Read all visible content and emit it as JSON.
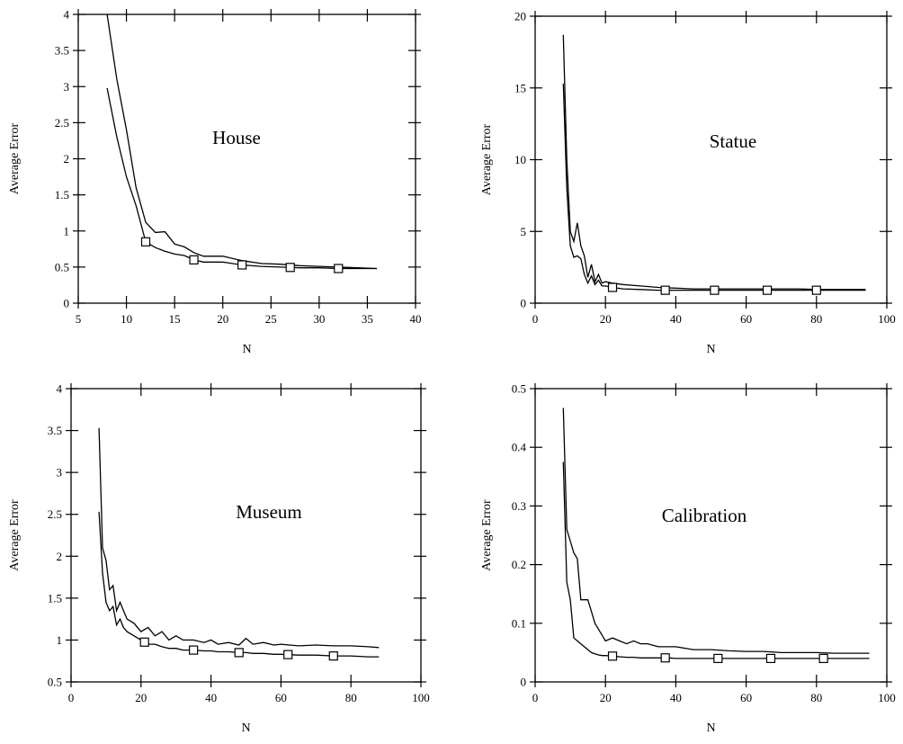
{
  "chart_data": [
    {
      "type": "line",
      "title": "House",
      "xlabel": "N",
      "ylabel": "Average Error",
      "xlim": [
        5,
        40
      ],
      "ylim": [
        0,
        4
      ],
      "xticks": [
        5,
        10,
        15,
        20,
        25,
        30,
        35,
        40
      ],
      "yticks": [
        0,
        0.5,
        1,
        1.5,
        2,
        2.5,
        3,
        3.5,
        4
      ],
      "ytick_labels": [
        "0",
        "0.5",
        "1",
        "1.5",
        "2",
        "2.5",
        "3",
        "3.5",
        "4"
      ],
      "grid": false,
      "series": [
        {
          "x": [
            8,
            9,
            10,
            11,
            12,
            13,
            14,
            15,
            16,
            17,
            18,
            20,
            22,
            24,
            26,
            28,
            30,
            32,
            34,
            36
          ],
          "y": [
            4.0,
            3.1,
            2.4,
            1.6,
            1.12,
            0.98,
            0.99,
            0.82,
            0.78,
            0.7,
            0.65,
            0.65,
            0.59,
            0.55,
            0.54,
            0.52,
            0.51,
            0.5,
            0.49,
            0.48
          ],
          "marker": "none"
        },
        {
          "x": [
            8,
            9,
            10,
            11,
            12,
            13,
            14,
            15,
            16,
            17,
            18,
            20,
            22,
            24,
            26,
            28,
            30,
            32,
            34,
            36
          ],
          "y": [
            2.98,
            2.3,
            1.75,
            1.35,
            0.85,
            0.77,
            0.72,
            0.68,
            0.66,
            0.6,
            0.57,
            0.57,
            0.53,
            0.51,
            0.5,
            0.49,
            0.49,
            0.48,
            0.48,
            0.48
          ],
          "marker": "square",
          "marker_x": [
            12,
            17,
            22,
            27,
            32
          ]
        }
      ]
    },
    {
      "type": "line",
      "title": "Statue",
      "xlabel": "N",
      "ylabel": "Average Error",
      "xlim": [
        0,
        100
      ],
      "ylim": [
        0,
        20
      ],
      "xticks": [
        0,
        20,
        40,
        60,
        80,
        100
      ],
      "yticks": [
        0,
        5,
        10,
        15,
        20
      ],
      "ytick_labels": [
        "0",
        "5",
        "10",
        "15",
        "20"
      ],
      "grid": false,
      "series": [
        {
          "x": [
            8,
            9,
            10,
            11,
            12,
            13,
            14,
            15,
            16,
            17,
            18,
            19,
            20,
            22,
            25,
            30,
            35,
            40,
            45,
            50,
            55,
            60,
            65,
            70,
            75,
            80,
            85,
            90,
            94
          ],
          "y": [
            18.7,
            10.0,
            5.0,
            4.3,
            5.6,
            4.0,
            3.3,
            1.8,
            2.7,
            1.5,
            2.0,
            1.4,
            1.5,
            1.4,
            1.3,
            1.2,
            1.1,
            1.05,
            1.0,
            1.0,
            1.0,
            1.0,
            1.0,
            1.0,
            1.0,
            0.95,
            0.95,
            0.95,
            0.95
          ],
          "marker": "none"
        },
        {
          "x": [
            8,
            9,
            10,
            11,
            12,
            13,
            14,
            15,
            16,
            17,
            18,
            19,
            20,
            22,
            25,
            30,
            35,
            40,
            45,
            50,
            55,
            60,
            65,
            70,
            75,
            80,
            85,
            90,
            94
          ],
          "y": [
            15.3,
            8.0,
            4.0,
            3.2,
            3.3,
            3.1,
            2.0,
            1.4,
            1.9,
            1.3,
            1.6,
            1.2,
            1.2,
            1.1,
            1.0,
            0.95,
            0.9,
            0.9,
            0.9,
            0.9,
            0.9,
            0.9,
            0.9,
            0.9,
            0.9,
            0.9,
            0.9,
            0.9,
            0.9
          ],
          "marker": "square",
          "marker_x": [
            22,
            37,
            51,
            66,
            80
          ]
        }
      ]
    },
    {
      "type": "line",
      "title": "Museum",
      "xlabel": "N",
      "ylabel": "Average Error",
      "xlim": [
        0,
        100
      ],
      "ylim": [
        0.5,
        4
      ],
      "xticks": [
        0,
        20,
        40,
        60,
        80,
        100
      ],
      "yticks": [
        0.5,
        1,
        1.5,
        2,
        2.5,
        3,
        3.5,
        4
      ],
      "ytick_labels": [
        "0.5",
        "1",
        "1.5",
        "2",
        "2.5",
        "3",
        "3.5",
        "4"
      ],
      "grid": false,
      "series": [
        {
          "x": [
            8,
            9,
            10,
            11,
            12,
            13,
            14,
            15,
            16,
            18,
            20,
            22,
            24,
            26,
            28,
            30,
            32,
            35,
            38,
            40,
            42,
            45,
            48,
            50,
            52,
            55,
            58,
            60,
            65,
            70,
            75,
            80,
            85,
            88
          ],
          "y": [
            3.53,
            2.1,
            1.95,
            1.6,
            1.65,
            1.35,
            1.45,
            1.35,
            1.25,
            1.2,
            1.1,
            1.15,
            1.05,
            1.1,
            1.0,
            1.05,
            1.0,
            1.0,
            0.97,
            1.0,
            0.95,
            0.97,
            0.94,
            1.02,
            0.95,
            0.97,
            0.94,
            0.95,
            0.93,
            0.94,
            0.93,
            0.93,
            0.92,
            0.91
          ],
          "marker": "none"
        },
        {
          "x": [
            8,
            9,
            10,
            11,
            12,
            13,
            14,
            15,
            16,
            18,
            20,
            22,
            24,
            26,
            28,
            30,
            32,
            35,
            38,
            40,
            42,
            45,
            48,
            50,
            52,
            55,
            58,
            60,
            65,
            70,
            75,
            80,
            85,
            88
          ],
          "y": [
            2.53,
            1.8,
            1.45,
            1.35,
            1.4,
            1.18,
            1.25,
            1.15,
            1.1,
            1.05,
            1.0,
            0.95,
            0.95,
            0.92,
            0.9,
            0.9,
            0.88,
            0.88,
            0.87,
            0.87,
            0.86,
            0.86,
            0.85,
            0.85,
            0.84,
            0.84,
            0.83,
            0.83,
            0.82,
            0.82,
            0.81,
            0.81,
            0.8,
            0.8
          ],
          "marker": "square",
          "marker_x": [
            21,
            35,
            48,
            62,
            75
          ]
        }
      ]
    },
    {
      "type": "line",
      "title": "Calibration",
      "xlabel": "N",
      "ylabel": "Average Error",
      "xlim": [
        0,
        100
      ],
      "ylim": [
        0,
        0.5
      ],
      "xticks": [
        0,
        20,
        40,
        60,
        80,
        100
      ],
      "yticks": [
        0,
        0.1,
        0.2,
        0.3,
        0.4,
        0.5
      ],
      "ytick_labels": [
        "0",
        "0.1",
        "0.2",
        "0.3",
        "0.4",
        "0.5"
      ],
      "grid": false,
      "series": [
        {
          "x": [
            8,
            9,
            10,
            11,
            12,
            13,
            14,
            15,
            16,
            17,
            18,
            19,
            20,
            22,
            24,
            26,
            28,
            30,
            32,
            35,
            38,
            40,
            45,
            50,
            55,
            60,
            65,
            70,
            75,
            80,
            85,
            90,
            95
          ],
          "y": [
            0.467,
            0.26,
            0.24,
            0.22,
            0.21,
            0.14,
            0.14,
            0.14,
            0.12,
            0.1,
            0.09,
            0.08,
            0.07,
            0.075,
            0.07,
            0.065,
            0.07,
            0.065,
            0.065,
            0.06,
            0.06,
            0.06,
            0.055,
            0.055,
            0.053,
            0.052,
            0.052,
            0.05,
            0.05,
            0.05,
            0.049,
            0.049,
            0.049
          ],
          "marker": "none"
        },
        {
          "x": [
            8,
            9,
            10,
            11,
            12,
            13,
            14,
            15,
            16,
            17,
            18,
            19,
            20,
            22,
            24,
            26,
            28,
            30,
            32,
            35,
            38,
            40,
            45,
            50,
            55,
            60,
            65,
            70,
            75,
            80,
            85,
            90,
            95
          ],
          "y": [
            0.375,
            0.17,
            0.14,
            0.075,
            0.07,
            0.065,
            0.06,
            0.055,
            0.05,
            0.048,
            0.046,
            0.045,
            0.045,
            0.044,
            0.043,
            0.042,
            0.042,
            0.041,
            0.041,
            0.041,
            0.041,
            0.04,
            0.04,
            0.04,
            0.04,
            0.04,
            0.04,
            0.04,
            0.04,
            0.04,
            0.04,
            0.04,
            0.04
          ],
          "marker": "square",
          "marker_x": [
            22,
            37,
            52,
            67,
            82
          ]
        }
      ]
    }
  ]
}
